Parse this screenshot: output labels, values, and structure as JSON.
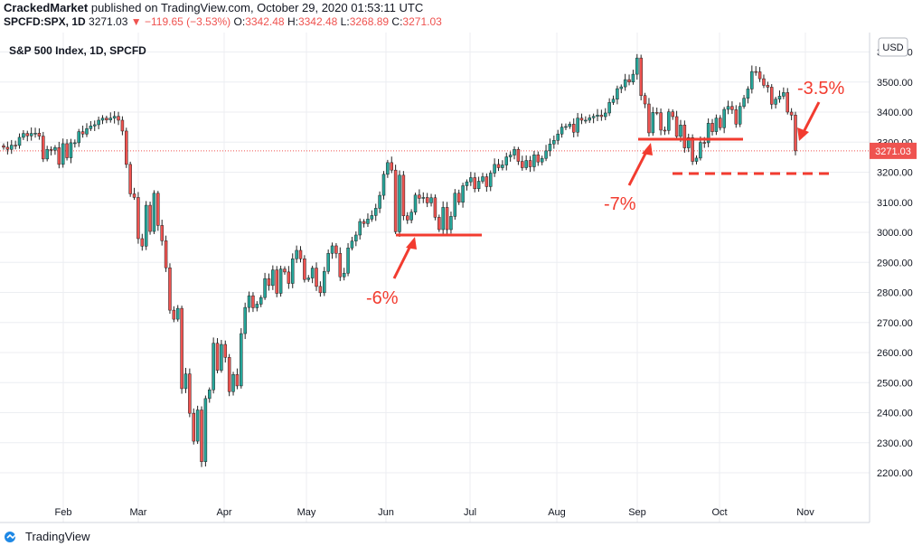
{
  "header": {
    "author": "CrackedMarket",
    "published_text": "published on TradingView.com, October 29, 2020 01:53:11 UTC",
    "symbol": "SPCFD:SPX, 1D",
    "last_price": "3271.03",
    "arrow": "▼",
    "change": "−119.65 (−3.53%)",
    "o_label": "O:",
    "o_value": "3342.48",
    "h_label": "H:",
    "h_value": "3342.48",
    "l_label": "L:",
    "l_value": "3268.89",
    "c_label": "C:",
    "c_value": "3271.03"
  },
  "footer": {
    "brand": "TradingView"
  },
  "colors": {
    "up": "#26a69a",
    "down": "#ef5350",
    "annotation": "#f23b2f",
    "grid": "#eceef2"
  },
  "chart_data": {
    "type": "candlestick",
    "title": "S&P 500 Index, 1D, SPCFD",
    "currency_badge": "USD",
    "last_price_label": "3271.03",
    "y_axis": {
      "ticks": [
        2200,
        2300,
        2400,
        2500,
        2600,
        2700,
        2800,
        2900,
        3000,
        3100,
        3200,
        3300,
        3400,
        3500,
        3600
      ],
      "labels": [
        "2200.00",
        "2300.00",
        "2400.00",
        "2500.00",
        "2600.00",
        "2700.00",
        "2800.00",
        "2900.00",
        "3000.00",
        "3100.00",
        "3200.00",
        "3300.00",
        "3400.00",
        "3500.00",
        "3600.00"
      ]
    },
    "x_axis": {
      "labels": [
        "Feb",
        "Mar",
        "Apr",
        "May",
        "Jun",
        "Jul",
        "Aug",
        "Sep",
        "Oct",
        "Nov"
      ]
    },
    "grid": true,
    "closes": [
      3283,
      3276,
      3290,
      3289,
      3316,
      3329,
      3321,
      3329,
      3330,
      3320,
      3244,
      3276,
      3273,
      3282,
      3226,
      3295,
      3248,
      3298,
      3298,
      3335,
      3327,
      3345,
      3354,
      3358,
      3373,
      3380,
      3374,
      3380,
      3386,
      3373,
      3337,
      3226,
      3128,
      3116,
      2979,
      2954,
      3090,
      3003,
      3130,
      3023,
      2972,
      2882,
      2741,
      2711,
      2747,
      2480,
      2529,
      2398,
      2305,
      2409,
      2237,
      2447,
      2476,
      2631,
      2541,
      2627,
      2584,
      2470,
      2527,
      2489,
      2663,
      2750,
      2789,
      2749,
      2761,
      2783,
      2846,
      2823,
      2875,
      2797,
      2878,
      2868,
      2830,
      2912,
      2940,
      2912,
      2843,
      2848,
      2881,
      2820,
      2799,
      2870,
      2930,
      2955,
      2930,
      2852,
      2864,
      2948,
      2971,
      2991,
      3036,
      3029,
      3044,
      3056,
      3080,
      3123,
      3193,
      3232,
      3207,
      3002,
      3190,
      3055,
      3041,
      3067,
      3124,
      3113,
      3116,
      3098,
      3115,
      3050,
      3009,
      3083,
      3009,
      3053,
      3130,
      3100,
      3155,
      3168,
      3182,
      3145,
      3170,
      3185,
      3152,
      3197,
      3226,
      3215,
      3224,
      3251,
      3257,
      3276,
      3236,
      3215,
      3239,
      3218,
      3258,
      3234,
      3246,
      3271,
      3294,
      3306,
      3327,
      3350,
      3352,
      3360,
      3333,
      3380,
      3373,
      3373,
      3381,
      3386,
      3390,
      3385,
      3397,
      3432,
      3443,
      3478,
      3484,
      3508,
      3500,
      3526,
      3580,
      3455,
      3427,
      3331,
      3399,
      3398,
      3340,
      3339,
      3401,
      3385,
      3319,
      3357,
      3281,
      3315,
      3236,
      3247,
      3299,
      3298,
      3363,
      3335,
      3380,
      3348,
      3409,
      3419,
      3408,
      3360,
      3419,
      3446,
      3477,
      3535,
      3534,
      3511,
      3489,
      3483,
      3426,
      3443,
      3453,
      3465,
      3400,
      3390,
      3271
    ]
  }
}
